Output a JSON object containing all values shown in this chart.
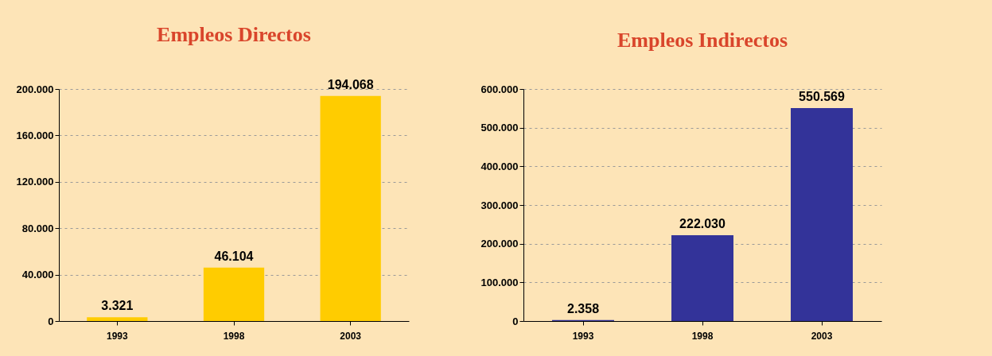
{
  "chart_data": [
    {
      "type": "bar",
      "title": "Empleos Directos",
      "categories": [
        "1993",
        "1998",
        "2003"
      ],
      "values": [
        3321,
        46104,
        194068
      ],
      "color": "#ffcc00",
      "value_labels": [
        "3.321",
        "46.104",
        "194.068"
      ],
      "ylim": [
        0,
        200000
      ],
      "yticks": [
        0,
        {
          "value": 40000,
          "label": "40.000"
        },
        {
          "value": 80000,
          "label": "80.000"
        },
        {
          "value": 120000,
          "label": "120.000"
        },
        {
          "value": 160000,
          "label": "160.000"
        },
        {
          "value": 200000,
          "label": "200.000"
        }
      ],
      "grid": "y"
    },
    {
      "type": "bar",
      "title": "Empleos Indirectos",
      "categories": [
        "1993",
        "1998",
        "2003"
      ],
      "values": [
        2358,
        222030,
        550569
      ],
      "color": "#333399",
      "value_labels": [
        "2.358",
        "222.030",
        "550.569"
      ],
      "ylim": [
        0,
        600000
      ],
      "yticks": [
        0,
        {
          "value": 100000,
          "label": "100.000"
        },
        {
          "value": 200000,
          "label": "200.000"
        },
        {
          "value": 300000,
          "label": "300.000"
        },
        {
          "value": 400000,
          "label": "400.000"
        },
        {
          "value": 500000,
          "label": "500.000"
        },
        {
          "value": 600000,
          "label": "600.000"
        }
      ],
      "grid": "y"
    }
  ]
}
